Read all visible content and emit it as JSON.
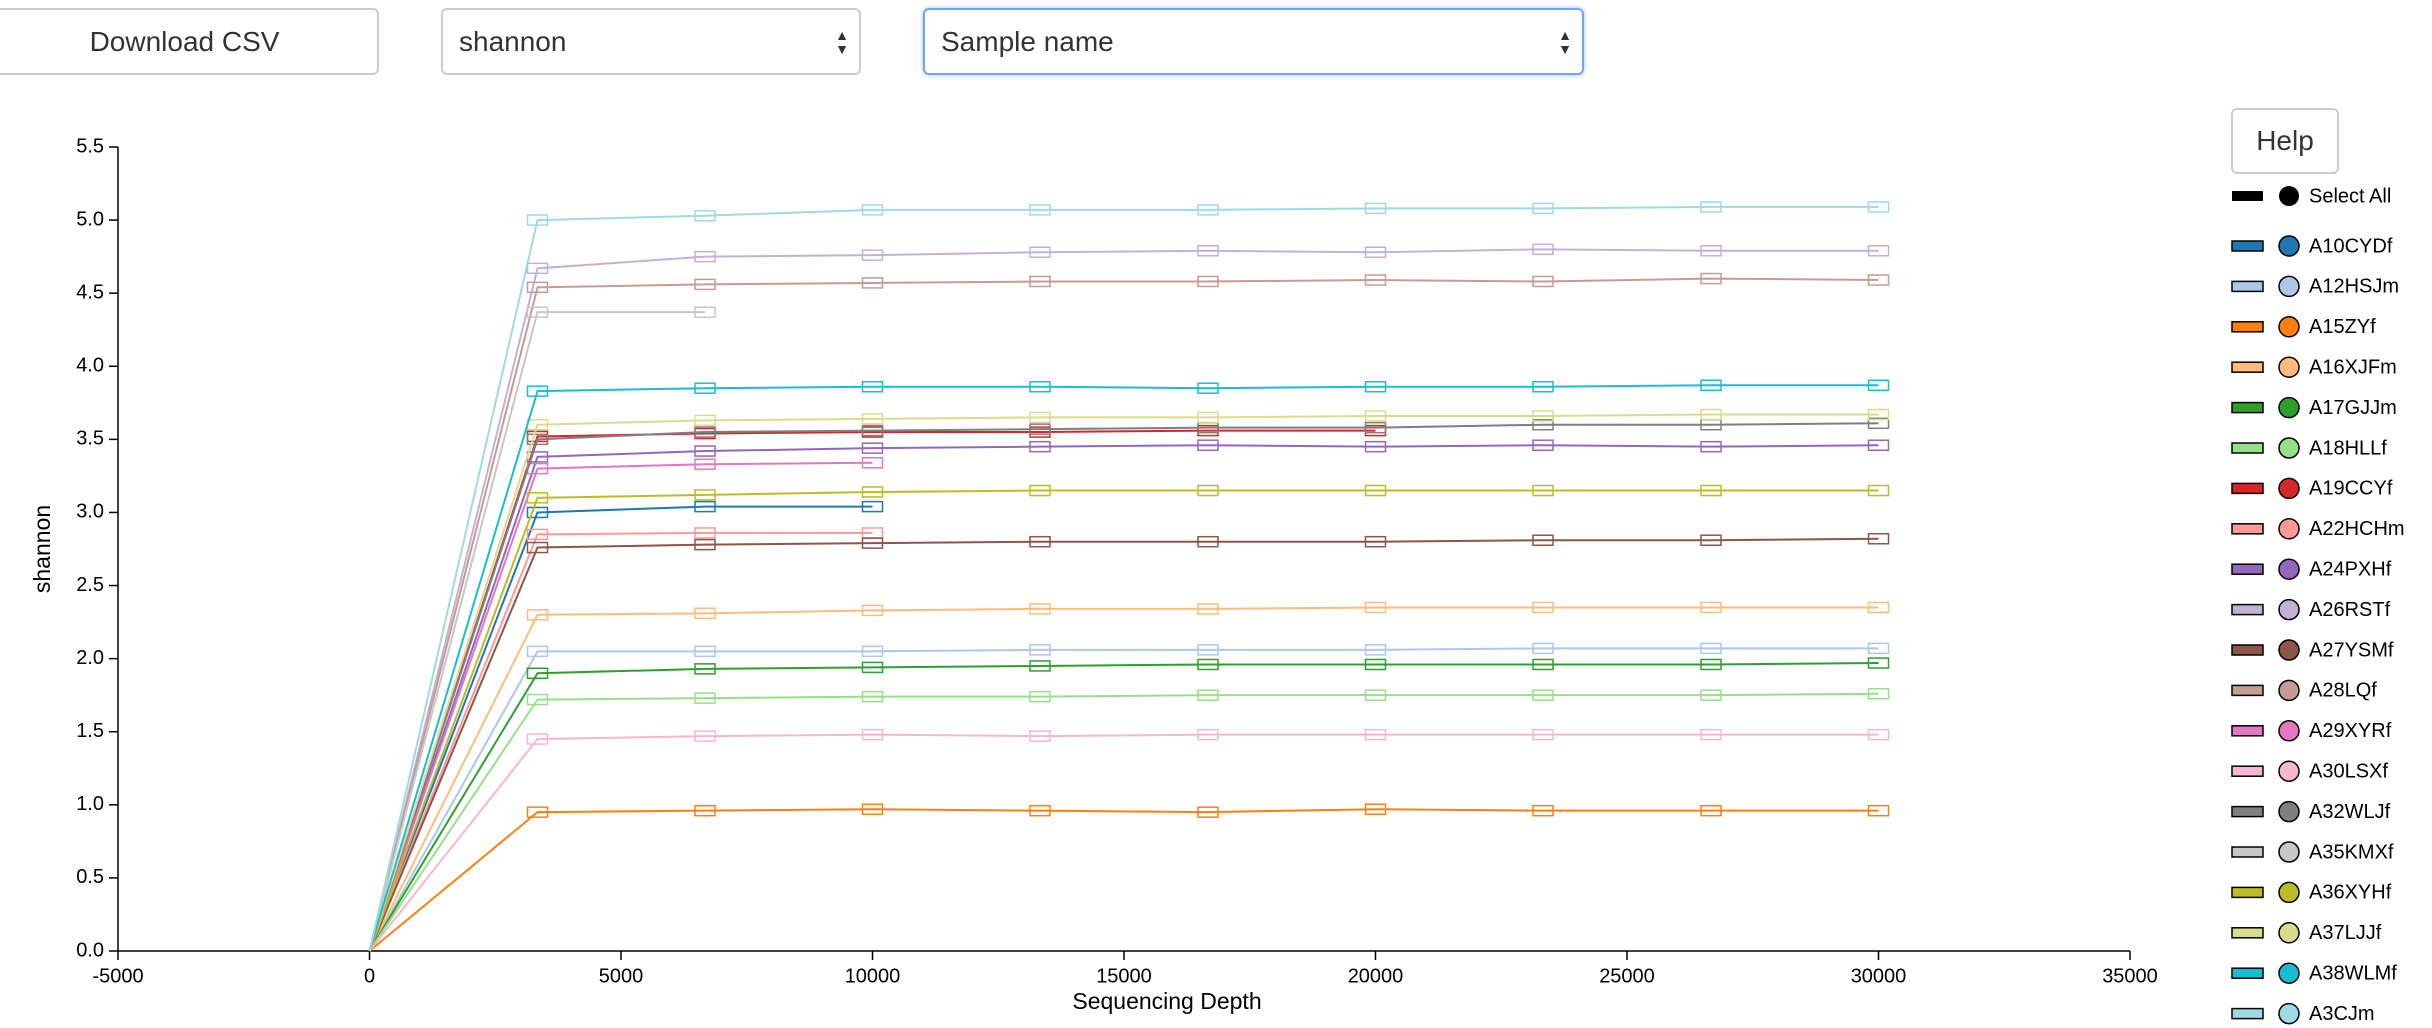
{
  "controls": {
    "download": "Download CSV",
    "metric": "shannon",
    "category": "Sample name",
    "help": "Help",
    "select_all": "Select All"
  },
  "chart_data": {
    "type": "line",
    "x_label": "Sequencing Depth",
    "y_label": "shannon",
    "x": [
      0,
      3340,
      6670,
      10000,
      13330,
      16670,
      20000,
      23330,
      26670,
      30000
    ],
    "xlim": [
      -5000,
      35000
    ],
    "xticks": [
      -5000,
      0,
      5000,
      10000,
      15000,
      20000,
      25000,
      30000,
      35000
    ],
    "ylim": [
      0,
      5.5
    ],
    "yticks": [
      {
        "value": 0,
        "label": "0.0"
      },
      0.5,
      {
        "value": 1,
        "label": "1.0"
      },
      1.5,
      {
        "value": 2,
        "label": "2.0"
      },
      2.5,
      {
        "value": 3,
        "label": "3.0"
      },
      3.5,
      {
        "value": 4,
        "label": "4.0"
      },
      4.5,
      {
        "value": 5,
        "label": "5.0"
      },
      5.5
    ],
    "series": [
      {
        "name": "A10CYDf",
        "color": "#1f77b4",
        "values": [
          0,
          3.0,
          3.04,
          3.04,
          null,
          null,
          null,
          null,
          null,
          null
        ]
      },
      {
        "name": "A12HSJm",
        "color": "#aec7e8",
        "values": [
          0,
          2.05,
          2.05,
          2.05,
          2.06,
          2.06,
          2.06,
          2.07,
          2.07,
          2.07
        ]
      },
      {
        "name": "A15ZYf",
        "color": "#ff7f0e",
        "values": [
          0,
          0.95,
          0.96,
          0.97,
          0.96,
          0.95,
          0.97,
          0.96,
          0.96,
          0.96
        ]
      },
      {
        "name": "A16XJFm",
        "color": "#ffbb78",
        "values": [
          0,
          2.3,
          2.31,
          2.33,
          2.34,
          2.34,
          2.35,
          2.35,
          2.35,
          2.35
        ]
      },
      {
        "name": "A17GJJm",
        "color": "#2ca02c",
        "values": [
          0,
          1.9,
          1.93,
          1.94,
          1.95,
          1.96,
          1.96,
          1.96,
          1.96,
          1.97
        ]
      },
      {
        "name": "A18HLLf",
        "color": "#98df8a",
        "values": [
          0,
          1.72,
          1.73,
          1.74,
          1.74,
          1.75,
          1.75,
          1.75,
          1.75,
          1.76
        ]
      },
      {
        "name": "A19CCYf",
        "color": "#d62728",
        "values": [
          0,
          3.52,
          3.54,
          3.55,
          3.55,
          3.56,
          3.56,
          null,
          null,
          null
        ]
      },
      {
        "name": "A22HCHm",
        "color": "#ff9896",
        "values": [
          0,
          2.85,
          2.86,
          2.86,
          null,
          null,
          null,
          null,
          null,
          null
        ]
      },
      {
        "name": "A24PXHf",
        "color": "#9467bd",
        "values": [
          0,
          3.38,
          3.42,
          3.44,
          3.45,
          3.46,
          3.45,
          3.46,
          3.45,
          3.46
        ]
      },
      {
        "name": "A26RSTf",
        "color": "#c5b0d5",
        "values": [
          0,
          4.67,
          4.75,
          4.76,
          4.78,
          4.79,
          4.78,
          4.8,
          4.79,
          4.79
        ]
      },
      {
        "name": "A27YSMf",
        "color": "#8c564b",
        "values": [
          0,
          2.76,
          2.78,
          2.79,
          2.8,
          2.8,
          2.8,
          2.81,
          2.81,
          2.82
        ]
      },
      {
        "name": "A28LQf",
        "color": "#c49c94",
        "values": [
          0,
          4.54,
          4.56,
          4.57,
          4.58,
          4.58,
          4.59,
          4.58,
          4.6,
          4.59
        ]
      },
      {
        "name": "A29XYRf",
        "color": "#e377c2",
        "values": [
          0,
          3.3,
          3.33,
          3.34,
          null,
          null,
          null,
          null,
          null,
          null
        ]
      },
      {
        "name": "A30LSXf",
        "color": "#f7b6d2",
        "values": [
          0,
          1.45,
          1.47,
          1.48,
          1.47,
          1.48,
          1.48,
          1.48,
          1.48,
          1.48
        ]
      },
      {
        "name": "A32WLJf",
        "color": "#7f7f7f",
        "values": [
          0,
          3.5,
          3.55,
          3.56,
          3.57,
          3.58,
          3.58,
          3.6,
          3.6,
          3.61
        ]
      },
      {
        "name": "A35KMXf",
        "color": "#c7c7c7",
        "values": [
          0,
          4.37,
          4.37,
          null,
          null,
          null,
          null,
          null,
          null,
          null
        ]
      },
      {
        "name": "A36XYHf",
        "color": "#bcbd22",
        "values": [
          0,
          3.1,
          3.12,
          3.14,
          3.15,
          3.15,
          3.15,
          3.15,
          3.15,
          3.15
        ]
      },
      {
        "name": "A37LJJf",
        "color": "#dbdb8d",
        "values": [
          0,
          3.6,
          3.63,
          3.64,
          3.65,
          3.65,
          3.66,
          3.66,
          3.67,
          3.67
        ]
      },
      {
        "name": "A38WLMf",
        "color": "#17becf",
        "values": [
          0,
          3.83,
          3.85,
          3.86,
          3.86,
          3.85,
          3.86,
          3.86,
          3.87,
          3.87
        ]
      },
      {
        "name": "A3CJm",
        "color": "#9edae5",
        "values": [
          0,
          5.0,
          5.03,
          5.07,
          5.07,
          5.07,
          5.08,
          5.08,
          5.09,
          5.09
        ]
      }
    ]
  }
}
